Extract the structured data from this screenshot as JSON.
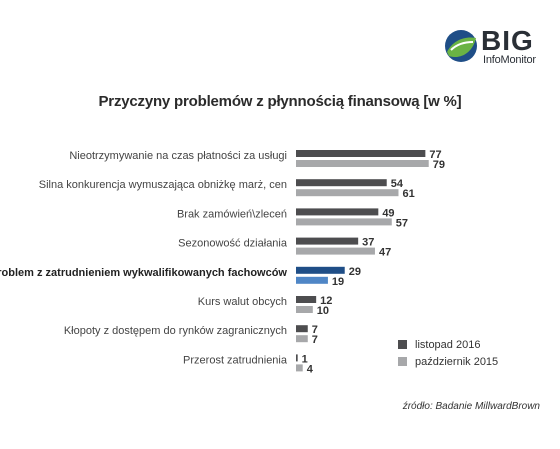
{
  "logo": {
    "name": "BIG",
    "subtitle": "InfoMonitor"
  },
  "source": "źródło: Badanie MillwardBrown",
  "colors": {
    "series_2016": "#4d4d4f",
    "series_2015": "#a7a8aa",
    "highlight_2016": "#1f4e87",
    "highlight_2015": "#4f86c6",
    "logo_blue": "#1f4e87",
    "logo_green": "#6ab344"
  },
  "chart_data": {
    "type": "bar",
    "orientation": "horizontal",
    "title": "Przyczyny problemów z płynnością finansową [w %]",
    "categories": [
      "Nieotrzymywanie na czas płatności za usługi",
      "Silna konkurencja wymuszająca obniżkę marż, cen",
      "Brak zamówień\\zleceń",
      "Sezonowość działania",
      "Problem z zatrudnieniem wykwalifikowanych fachowców",
      "Kurs walut obcych",
      "Kłopoty z dostępem do rynków zagranicznych",
      "Przerost zatrudnienia"
    ],
    "highlighted_category_index": 4,
    "series": [
      {
        "name": "listopad 2016",
        "values": [
          77,
          54,
          49,
          37,
          29,
          12,
          7,
          1
        ]
      },
      {
        "name": "październik 2015",
        "values": [
          79,
          61,
          57,
          47,
          19,
          10,
          7,
          4
        ]
      }
    ],
    "xlim": [
      0,
      100
    ],
    "grid": false,
    "legend_position": "bottom-right"
  }
}
